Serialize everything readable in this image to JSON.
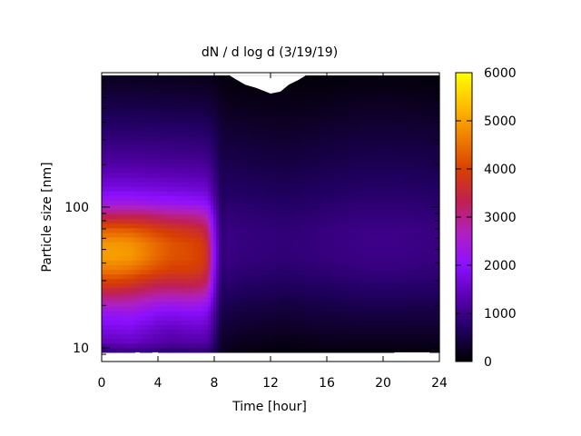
{
  "chart_data": {
    "type": "heatmap",
    "title": "dN / d log d (3/19/19)",
    "xlabel": "Time [hour]",
    "ylabel": "Particle size [nm]",
    "xlim": [
      0,
      24
    ],
    "ylim": [
      8,
      900
    ],
    "y_scale": "log",
    "x_ticks": [
      {
        "value": 0,
        "label": "0"
      },
      {
        "value": 4,
        "label": "4"
      },
      {
        "value": 8,
        "label": "8"
      },
      {
        "value": 12,
        "label": "12"
      },
      {
        "value": 16,
        "label": "16"
      },
      {
        "value": 20,
        "label": "20"
      },
      {
        "value": 24,
        "label": "24"
      }
    ],
    "y_ticks": [
      {
        "value": 10,
        "label": "10"
      },
      {
        "value": 100,
        "label": "100"
      }
    ],
    "colorbar": {
      "min": 0,
      "max": 6000,
      "ticks": [
        {
          "value": 0,
          "label": "0"
        },
        {
          "value": 1000,
          "label": "1000"
        },
        {
          "value": 2000,
          "label": "2000"
        },
        {
          "value": 3000,
          "label": "3000"
        },
        {
          "value": 4000,
          "label": "4000"
        },
        {
          "value": 5000,
          "label": "5000"
        },
        {
          "value": 6000,
          "label": "6000"
        }
      ],
      "palette": [
        "#000000",
        "#200060",
        "#5a00b0",
        "#8c10ff",
        "#b020c0",
        "#c02050",
        "#d84000",
        "#f08000",
        "#ffc000",
        "#ffff00"
      ]
    },
    "grid": false,
    "sizes_nm": [
      9,
      11,
      14,
      18,
      22,
      28,
      36,
      45,
      56,
      70,
      88,
      110,
      140,
      175,
      220,
      280,
      350,
      440,
      560,
      700,
      870
    ],
    "times_hour": [
      0,
      1,
      2,
      3,
      4,
      5,
      6,
      7,
      7.5,
      8,
      8.5,
      9,
      10,
      11,
      12,
      13,
      14,
      15,
      16,
      17,
      18,
      19,
      20,
      21,
      22,
      23,
      24
    ],
    "values": [
      [
        700,
        750,
        780,
        760,
        700,
        680,
        700,
        700,
        700,
        500,
        200,
        150,
        80,
        80,
        70,
        60,
        70,
        70,
        70,
        70,
        70,
        70,
        70,
        70,
        70,
        70,
        70
      ],
      [
        1400,
        1450,
        1500,
        1400,
        1300,
        1200,
        1250,
        1250,
        1200,
        800,
        300,
        250,
        200,
        180,
        170,
        150,
        170,
        180,
        180,
        190,
        190,
        190,
        190,
        200,
        200,
        200,
        200
      ],
      [
        1800,
        1800,
        1850,
        1700,
        1550,
        1500,
        1550,
        1600,
        1500,
        1000,
        400,
        380,
        320,
        300,
        280,
        260,
        280,
        300,
        310,
        320,
        330,
        330,
        330,
        330,
        330,
        330,
        330
      ],
      [
        2200,
        2200,
        2250,
        2100,
        1950,
        1900,
        1950,
        1950,
        1800,
        1200,
        500,
        500,
        440,
        420,
        400,
        380,
        400,
        420,
        440,
        450,
        460,
        470,
        470,
        470,
        470,
        460,
        460
      ],
      [
        2900,
        2900,
        2850,
        2700,
        2550,
        2500,
        2550,
        2500,
        2300,
        1450,
        600,
        620,
        560,
        540,
        520,
        500,
        520,
        540,
        560,
        580,
        600,
        610,
        610,
        610,
        600,
        590,
        580
      ],
      [
        3800,
        3800,
        3700,
        3500,
        3350,
        3300,
        3350,
        3300,
        3000,
        1700,
        700,
        760,
        700,
        680,
        660,
        640,
        660,
        680,
        700,
        720,
        740,
        760,
        760,
        760,
        750,
        740,
        720
      ],
      [
        4600,
        4600,
        4500,
        4300,
        4100,
        3950,
        3950,
        3850,
        3500,
        1950,
        800,
        880,
        820,
        800,
        780,
        760,
        780,
        800,
        830,
        860,
        880,
        900,
        900,
        900,
        880,
        860,
        840
      ],
      [
        5000,
        5000,
        4950,
        4700,
        4400,
        4200,
        4150,
        4000,
        3650,
        2050,
        860,
        960,
        900,
        880,
        860,
        840,
        860,
        880,
        910,
        940,
        960,
        980,
        980,
        980,
        960,
        940,
        920
      ],
      [
        4900,
        4900,
        4850,
        4650,
        4400,
        4200,
        4100,
        3950,
        3550,
        2000,
        860,
        980,
        920,
        900,
        880,
        860,
        880,
        900,
        930,
        960,
        980,
        1000,
        1000,
        1000,
        980,
        960,
        940
      ],
      [
        4300,
        4300,
        4250,
        4100,
        3950,
        3800,
        3700,
        3550,
        3200,
        1850,
        820,
        940,
        900,
        880,
        860,
        840,
        860,
        880,
        910,
        940,
        960,
        980,
        980,
        980,
        960,
        940,
        920
      ],
      [
        3200,
        3250,
        3250,
        3200,
        3100,
        3000,
        2950,
        2850,
        2600,
        1600,
        760,
        860,
        830,
        810,
        790,
        770,
        790,
        810,
        840,
        870,
        890,
        900,
        900,
        900,
        890,
        870,
        850
      ],
      [
        2200,
        2250,
        2250,
        2200,
        2150,
        2100,
        2050,
        2000,
        1900,
        1300,
        680,
        760,
        740,
        720,
        700,
        680,
        700,
        720,
        740,
        770,
        790,
        800,
        800,
        800,
        790,
        770,
        750
      ],
      [
        1700,
        1700,
        1700,
        1680,
        1650,
        1620,
        1600,
        1570,
        1500,
        1100,
        620,
        680,
        660,
        640,
        620,
        600,
        620,
        640,
        660,
        680,
        700,
        710,
        710,
        710,
        700,
        690,
        670
      ],
      [
        1400,
        1400,
        1400,
        1380,
        1360,
        1340,
        1320,
        1300,
        1250,
        950,
        560,
        600,
        580,
        560,
        540,
        520,
        540,
        560,
        580,
        600,
        620,
        630,
        630,
        630,
        620,
        610,
        590
      ],
      [
        1150,
        1150,
        1150,
        1130,
        1110,
        1100,
        1080,
        1060,
        1020,
        820,
        500,
        520,
        500,
        480,
        460,
        440,
        460,
        480,
        500,
        520,
        540,
        550,
        550,
        550,
        540,
        530,
        510
      ],
      [
        950,
        950,
        950,
        940,
        920,
        910,
        900,
        880,
        850,
        700,
        440,
        440,
        420,
        400,
        380,
        360,
        380,
        400,
        420,
        440,
        460,
        470,
        470,
        470,
        460,
        450,
        430
      ],
      [
        780,
        780,
        780,
        770,
        760,
        750,
        740,
        730,
        700,
        590,
        380,
        360,
        340,
        320,
        300,
        290,
        300,
        320,
        340,
        360,
        380,
        390,
        390,
        390,
        380,
        370,
        350
      ],
      [
        620,
        620,
        620,
        610,
        600,
        590,
        580,
        570,
        550,
        470,
        310,
        280,
        260,
        240,
        230,
        220,
        230,
        240,
        260,
        280,
        300,
        310,
        310,
        310,
        300,
        290,
        280
      ],
      [
        470,
        470,
        470,
        460,
        450,
        440,
        430,
        420,
        400,
        350,
        240,
        200,
        180,
        170,
        160,
        160,
        160,
        170,
        180,
        200,
        220,
        230,
        230,
        230,
        220,
        210,
        200
      ],
      [
        330,
        330,
        330,
        320,
        310,
        300,
        290,
        280,
        270,
        240,
        170,
        130,
        110,
        100,
        100,
        100,
        100,
        110,
        120,
        130,
        140,
        150,
        150,
        150,
        140,
        130,
        130
      ],
      [
        220,
        220,
        220,
        210,
        200,
        200,
        190,
        180,
        170,
        150,
        110,
        80,
        60,
        50,
        50,
        50,
        50,
        60,
        70,
        80,
        90,
        100,
        100,
        100,
        90,
        80,
        80
      ]
    ]
  }
}
